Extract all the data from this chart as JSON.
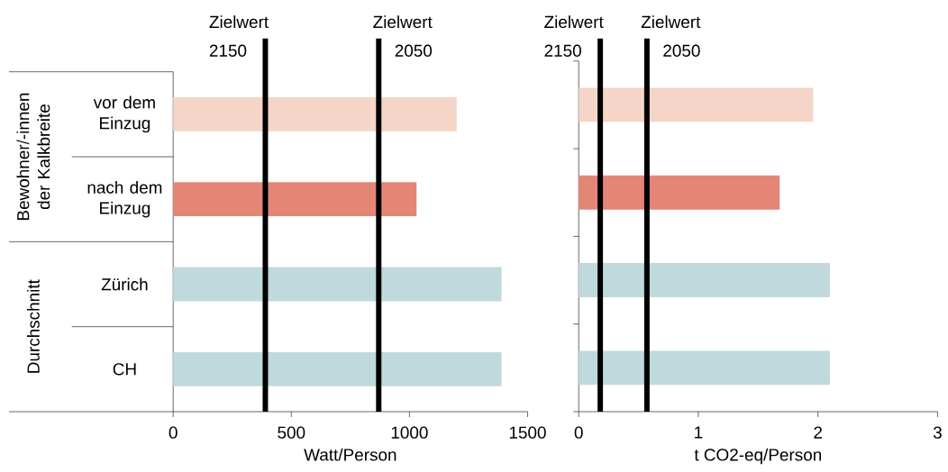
{
  "chart_data": [
    {
      "type": "bar",
      "orientation": "horizontal",
      "categories": [
        "vor dem Einzug",
        "nach dem Einzug",
        "Zürich",
        "CH"
      ],
      "values": [
        1200,
        1030,
        1390,
        1390
      ],
      "colors": [
        "#f5d5c8",
        "#e48676",
        "#bfd9dd",
        "#bfd9dd"
      ],
      "xlim": [
        0,
        1500
      ],
      "xticks": [
        0,
        500,
        1000,
        1500
      ],
      "xlabel": "Watt/Person",
      "ref_lines": [
        {
          "axis": "x",
          "value": 390,
          "label": "Zielwert 2150",
          "color": "#000000"
        },
        {
          "axis": "x",
          "value": 870,
          "label": "Zielwert 2050",
          "color": "#000000"
        }
      ],
      "annotations": [
        "Bewohner/-innen der Kalkbreite",
        "Durchschnitt"
      ]
    },
    {
      "type": "bar",
      "orientation": "horizontal",
      "categories": [
        null,
        null,
        null,
        null
      ],
      "values": [
        1.96,
        1.68,
        2.1,
        2.1
      ],
      "colors": [
        "#f5d5c8",
        "#e48676",
        "#bfd9dd",
        "#bfd9dd"
      ],
      "xlim": [
        0,
        3
      ],
      "xticks": [
        0,
        1,
        2,
        3
      ],
      "xlabel": "t CO2-eq/Person",
      "ref_lines": [
        {
          "axis": "x",
          "value": 0.18,
          "label": "Zielwert 2150",
          "color": "#000000"
        },
        {
          "axis": "x",
          "value": 0.57,
          "label": "Zielwert 2050",
          "color": "#000000"
        }
      ]
    }
  ]
}
